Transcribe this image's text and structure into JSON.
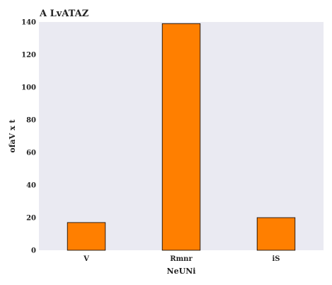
{
  "chart_data": {
    "type": "bar",
    "title": "A LvATAZ",
    "xlabel": "NeUNi",
    "ylabel": "ofaV x t",
    "categories": [
      "V",
      "Rmnr",
      "iS"
    ],
    "values": [
      17,
      139,
      20
    ],
    "ylim": [
      0,
      140
    ],
    "yticks": [
      0,
      20,
      40,
      60,
      80,
      100,
      120,
      140
    ],
    "grid": false,
    "colors": {
      "bar": "#ff7f00",
      "bar_edge": "#000000",
      "plot_background": "#eaeaf2"
    }
  }
}
